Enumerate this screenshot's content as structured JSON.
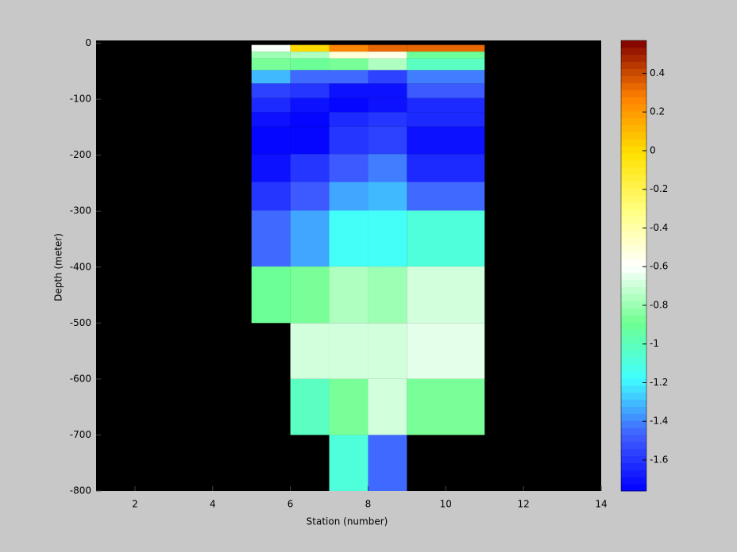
{
  "chart_data": {
    "type": "heatmap",
    "xlabel": "Station (number)",
    "ylabel": "Depth (meter)",
    "xlim": [
      1,
      14
    ],
    "ylim": [
      -800,
      5
    ],
    "xticks": [
      2,
      4,
      6,
      8,
      10,
      12,
      14
    ],
    "yticks": [
      0,
      -100,
      -200,
      -300,
      -400,
      -500,
      -600,
      -700,
      -800
    ],
    "xbins": [
      5,
      6,
      7,
      8,
      9,
      11
    ],
    "ybins": [
      -3,
      -15,
      -27,
      -48,
      -72,
      -98,
      -123,
      -149,
      -198,
      -248,
      -299,
      -399,
      -500,
      -600,
      -700,
      -800
    ],
    "values": [
      [
        -0.6,
        0.0,
        0.25,
        0.35,
        0.35
      ],
      [
        -0.8,
        -0.75,
        -0.5,
        -0.55,
        -0.9
      ],
      [
        -0.85,
        -0.9,
        -0.85,
        -0.75,
        -1.0
      ],
      [
        -1.3,
        -1.45,
        -1.45,
        -1.55,
        -1.4
      ],
      [
        -1.55,
        -1.6,
        -1.72,
        -1.7,
        -1.5
      ],
      [
        -1.65,
        -1.7,
        -1.76,
        -1.7,
        -1.62
      ],
      [
        -1.7,
        -1.76,
        -1.65,
        -1.6,
        -1.65
      ],
      [
        -1.76,
        -1.76,
        -1.6,
        -1.55,
        -1.7
      ],
      [
        -1.7,
        -1.6,
        -1.5,
        -1.4,
        -1.62
      ],
      [
        -1.6,
        -1.5,
        -1.35,
        -1.3,
        -1.45
      ],
      [
        -1.45,
        -1.35,
        -1.15,
        -1.15,
        -1.1
      ],
      [
        -0.9,
        -0.85,
        -0.75,
        -0.8,
        -0.7
      ],
      [
        null,
        -0.7,
        -0.7,
        -0.7,
        -0.65
      ],
      [
        null,
        -1.0,
        -0.85,
        -0.7,
        -0.85
      ],
      [
        null,
        null,
        -1.1,
        -1.45,
        null
      ]
    ],
    "clim": [
      -1.76,
      0.57
    ],
    "cticks": [
      -1.6,
      -1.4,
      -1.2,
      -1,
      -0.8,
      -0.6,
      -0.4,
      -0.2,
      0,
      0.2,
      0.4
    ],
    "colormap": [
      "#0000ff",
      "#4060ff",
      "#40ffff",
      "#70ff90",
      "#ffffff",
      "#ffff80",
      "#ffe000",
      "#ff8000",
      "#800000"
    ],
    "background": "#000000"
  }
}
